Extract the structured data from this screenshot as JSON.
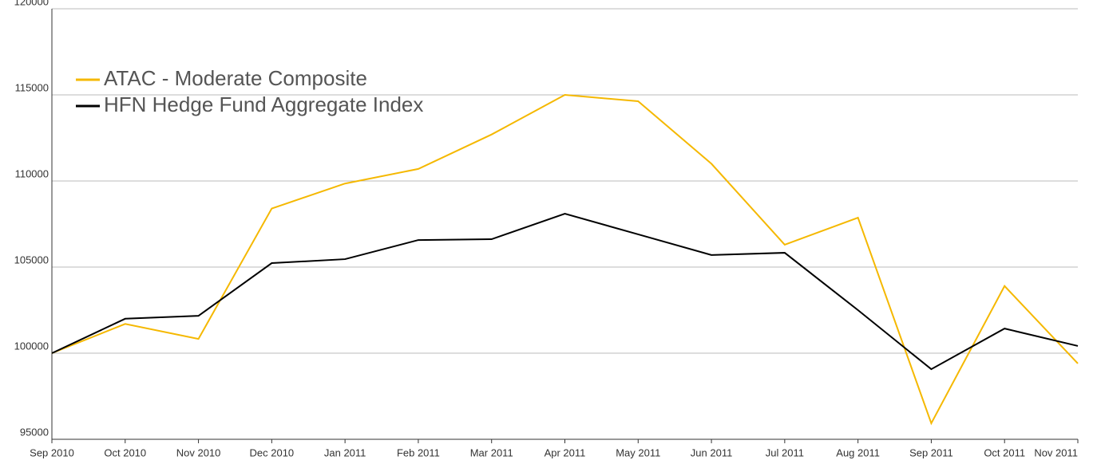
{
  "chart_data": {
    "type": "line",
    "categories": [
      "Sep 2010",
      "Oct 2010",
      "Nov 2010",
      "Dec 2010",
      "Jan 2011",
      "Feb 2011",
      "Mar 2011",
      "Apr 2011",
      "May 2011",
      "Jun 2011",
      "Jul 2011",
      "Aug 2011",
      "Sep 2011",
      "Oct 2011",
      "Nov 2011"
    ],
    "series": [
      {
        "name": "ATAC - Moderate Composite",
        "color": "#f5b800",
        "values": [
          100000,
          101700,
          100830,
          108400,
          109850,
          110700,
          112700,
          115000,
          114630,
          111000,
          106300,
          107870,
          95930,
          103900,
          99400
        ]
      },
      {
        "name": "HFN Hedge Fund Aggregate Index",
        "color": "#000000",
        "values": [
          100000,
          102000,
          102170,
          105230,
          105460,
          106570,
          106620,
          108100,
          106900,
          105700,
          105830,
          102500,
          99070,
          101430,
          100420
        ]
      }
    ],
    "ylim": [
      95000,
      120000
    ],
    "yticks": [
      95000,
      100000,
      105000,
      110000,
      115000,
      120000
    ],
    "grid": true,
    "legend": "upper left"
  }
}
